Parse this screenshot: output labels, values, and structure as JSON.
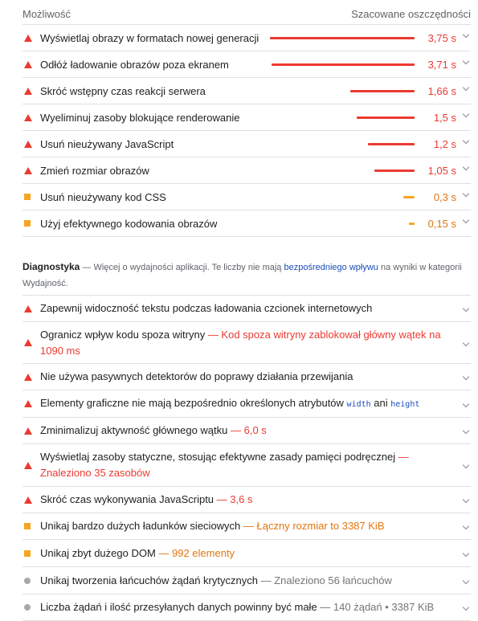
{
  "header": {
    "left": "Możliwość",
    "right": "Szacowane oszczędności"
  },
  "opportunities": [
    {
      "title": "Wyświetlaj obrazy w formatach nowej generacji",
      "savings": "3,75 s",
      "seconds": 3.75,
      "severity": "fail"
    },
    {
      "title": "Odłóż ładowanie obrazów poza ekranem",
      "savings": "3,71 s",
      "seconds": 3.71,
      "severity": "fail"
    },
    {
      "title": "Skróć wstępny czas reakcji serwera",
      "savings": "1,66 s",
      "seconds": 1.66,
      "severity": "fail"
    },
    {
      "title": "Wyeliminuj zasoby blokujące renderowanie",
      "savings": "1,5 s",
      "seconds": 1.5,
      "severity": "fail"
    },
    {
      "title": "Usuń nieużywany JavaScript",
      "savings": "1,2 s",
      "seconds": 1.2,
      "severity": "fail"
    },
    {
      "title": "Zmień rozmiar obrazów",
      "savings": "1,05 s",
      "seconds": 1.05,
      "severity": "fail"
    },
    {
      "title": "Usuń nieużywany kod CSS",
      "savings": "0,3 s",
      "seconds": 0.3,
      "severity": "average"
    },
    {
      "title": "Użyj efektywnego kodowania obrazów",
      "savings": "0,15 s",
      "seconds": 0.15,
      "severity": "average"
    }
  ],
  "diagnostics_header": {
    "title": "Diagnostyka",
    "text_before": " — Więcej o wydajności aplikacji. Te liczby nie mają ",
    "link": "bezpośredniego wpływu",
    "text_after": " na wyniki w kategorii Wydajność."
  },
  "diagnostics": [
    {
      "title": "Zapewnij widoczność tekstu podczas ładowania czcionek internetowych",
      "detail": "",
      "severity": "fail"
    },
    {
      "title": "Ogranicz wpływ kodu spoza witryny",
      "detail": "Kod spoza witryny zablokował główny wątek na 1090 ms",
      "severity": "fail"
    },
    {
      "title": "Nie używa pasywnych detektorów do poprawy działania przewijania",
      "detail": "",
      "severity": "fail"
    },
    {
      "title": "Elementy graficzne nie mają bezpośrednio określonych atrybutów",
      "code1": "width",
      "mid": "ani",
      "code2": "height",
      "detail": "",
      "severity": "fail"
    },
    {
      "title": "Zminimalizuj aktywność głównego wątku",
      "detail": "6,0 s",
      "severity": "fail"
    },
    {
      "title": "Wyświetlaj zasoby statyczne, stosując efektywne zasady pamięci podręcznej",
      "detail": "Znaleziono 35 zasobów",
      "severity": "fail"
    },
    {
      "title": "Skróć czas wykonywania JavaScriptu",
      "detail": "3,6 s",
      "severity": "fail"
    },
    {
      "title": "Unikaj bardzo dużych ładunków sieciowych",
      "detail": "Łączny rozmiar to 3387 KiB",
      "severity": "average"
    },
    {
      "title": "Unikaj zbyt dużego DOM",
      "detail": "992 elementy",
      "severity": "average"
    },
    {
      "title": "Unikaj tworzenia łańcuchów żądań krytycznych",
      "detail": "Znaleziono 56 łańcuchów",
      "severity": "info"
    },
    {
      "title": "Liczba żądań i ilość przesyłanych danych powinny być małe",
      "detail": "140 żądań • 3387 KiB",
      "severity": "info"
    }
  ],
  "colors": {
    "fail": "#eb3a30",
    "average": "#f6a520",
    "info": "#a8a8a8",
    "link": "#1a4dbd"
  }
}
